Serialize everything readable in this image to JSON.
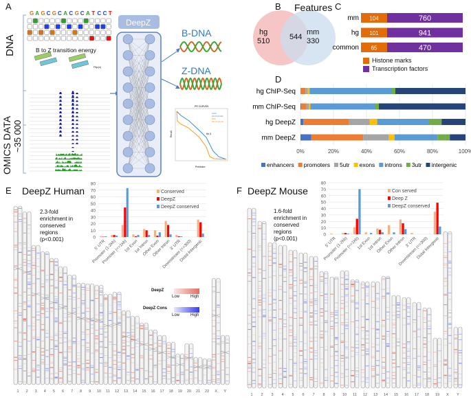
{
  "panel_labels": {
    "a": "A",
    "b": "B",
    "c": "C",
    "d": "D",
    "e": "E",
    "f": "F"
  },
  "panel_a": {
    "dna_label": "DNA",
    "omics_label": "OMICS DATA",
    "omics_count": "~35 000",
    "sequence": "GAGCGCACGCATCCT",
    "transition_label": "B to Z transition energy",
    "flip_label": "Flip(x)",
    "model_label": "DeepZ",
    "b_dna": "B-DNA",
    "z_dna": "Z-DNA",
    "pr_title": "PR CURVES",
    "pr_xlabel": "Precision",
    "pr_ylabel": "Recall",
    "pr_legend": [
      "HG19",
      "HG thresholds",
      "MM9",
      "MM thresholds"
    ],
    "pr_annotation": "thr 3"
  },
  "colors": {
    "A": "#2e9e2e",
    "C": "#1f3fe0",
    "G": "#e07010",
    "T": "#e81010",
    "blue_track": "#1a1aa8",
    "green_track": "#2a9a2a",
    "venn_hg": "#f4b6b8",
    "venn_mm": "#c9dcef",
    "histone": "#e36c0a",
    "tf": "#7030a0",
    "conserved": "#f4b183",
    "deepz": "#ff0000",
    "deepz_conserved": "#5b9bd5"
  },
  "chart_data": [
    {
      "type": "venn",
      "title": "Features",
      "sets": [
        {
          "name": "hg",
          "value": 510
        },
        {
          "name": "mm",
          "value": 330
        }
      ],
      "intersection": 544
    },
    {
      "type": "bar",
      "orientation": "horizontal",
      "stacked": true,
      "categories": [
        "mm",
        "hg",
        "common"
      ],
      "series": [
        {
          "name": "Histone marks",
          "values": [
            104,
            101,
            65
          ]
        },
        {
          "name": "Transcription factors",
          "values": [
            760,
            941,
            470
          ]
        }
      ]
    },
    {
      "type": "bar",
      "orientation": "horizontal",
      "stacked": true,
      "percent": true,
      "categories": [
        "hg ChIP-Seq",
        "mm ChIP-Seq",
        "hg DeepZ",
        "mm DeepZ"
      ],
      "xticks": [
        "0%",
        "20%",
        "40%",
        "60%",
        "80%",
        "100%"
      ],
      "series": [
        {
          "name": "enhancers",
          "color": "#4472c4",
          "values": [
            0,
            0.5,
            1.7,
            6.5
          ]
        },
        {
          "name": "promoters",
          "color": "#ed7d31",
          "values": [
            3,
            3,
            27.8,
            31.5
          ]
        },
        {
          "name": "5utr",
          "color": "#a5a5a5",
          "values": [
            1.5,
            1.5,
            12.5,
            15.5
          ]
        },
        {
          "name": "exons",
          "color": "#ffc000",
          "values": [
            1,
            1,
            4.5,
            3.5
          ]
        },
        {
          "name": "introns",
          "color": "#5b9bd5",
          "values": [
            49.5,
            39,
            31,
            26
          ]
        },
        {
          "name": "3utr",
          "color": "#70ad47",
          "values": [
            2.5,
            2.5,
            8,
            7.5
          ]
        },
        {
          "name": "intergenic",
          "color": "#264478",
          "values": [
            42.5,
            52.5,
            14.5,
            9.5
          ]
        }
      ],
      "xlim": [
        0,
        100
      ]
    },
    {
      "type": "bar",
      "title": "DeepZ Human",
      "ylim": [
        0,
        80
      ],
      "yticks": [
        "0",
        "10",
        "20",
        "30",
        "40",
        "50",
        "60",
        "70",
        "80"
      ],
      "categories": [
        "5' UTR",
        "Promoter (1-2kb)",
        "Promoter (<=1kb)",
        "1st Exon",
        "1st Intron",
        "Other Exon",
        "Other Intron",
        "3' UTR",
        "Downstream (<=300)",
        "Distal Intergenic"
      ],
      "series": [
        {
          "name": "Conserved",
          "values": [
            1.5,
            3,
            18,
            4,
            12,
            10,
            24,
            3,
            0,
            26
          ]
        },
        {
          "name": "DeepZ",
          "values": [
            0.5,
            3,
            44,
            1,
            10,
            2,
            18,
            1,
            0,
            22
          ]
        },
        {
          "name": "DeepZ conserved",
          "values": [
            1,
            2,
            73,
            3,
            3,
            7,
            4,
            1,
            0,
            5
          ]
        }
      ],
      "annotation": [
        "2.3-fold",
        "enrichment in",
        "conserved",
        "regions",
        "(p<0.001)"
      ]
    },
    {
      "type": "bar",
      "title": "DeepZ Mouse",
      "ylim": [
        0,
        80
      ],
      "yticks": [
        "0",
        "10",
        "20",
        "30",
        "40",
        "50",
        "60",
        "70",
        "80"
      ],
      "categories": [
        "5' UTR",
        "Promoter (1-2kb)",
        "Promoter (<=1kb)",
        "1st Exon",
        "1st Intron",
        "Other Exon",
        "Other Intron",
        "3' UTR",
        "Downstream (<=300)",
        "Distal Intergenic"
      ],
      "series": [
        {
          "name": "Con served",
          "values": [
            1,
            2,
            11,
            3,
            9,
            14,
            23,
            2,
            0,
            35
          ]
        },
        {
          "name": "Deep Z",
          "values": [
            0,
            2,
            24,
            0,
            7,
            0,
            17,
            0,
            0,
            49
          ]
        },
        {
          "name": "DeepZ conserved",
          "values": [
            0,
            1,
            70,
            2,
            3,
            3,
            8,
            0,
            0,
            12
          ]
        }
      ],
      "annotation": [
        "1.6-fold",
        "enrichment in",
        "conserved",
        "regions",
        "(p<0.001)"
      ]
    }
  ],
  "ideogram": {
    "human_chromosomes": [
      "1",
      "2",
      "3",
      "4",
      "5",
      "6",
      "7",
      "8",
      "9",
      "10",
      "11",
      "12",
      "13",
      "14",
      "15",
      "16",
      "17",
      "18",
      "19",
      "20",
      "21",
      "22",
      "X",
      "Y"
    ],
    "mouse_chromosomes": [
      "1",
      "2",
      "3",
      "4",
      "5",
      "6",
      "7",
      "8",
      "9",
      "10",
      "11",
      "12",
      "13",
      "14",
      "15",
      "16",
      "17",
      "18",
      "19",
      "X",
      "Y"
    ],
    "legend_deepz": "DeepZ",
    "legend_cons": "DeepZ Cons",
    "low": "Low",
    "high": "High"
  }
}
